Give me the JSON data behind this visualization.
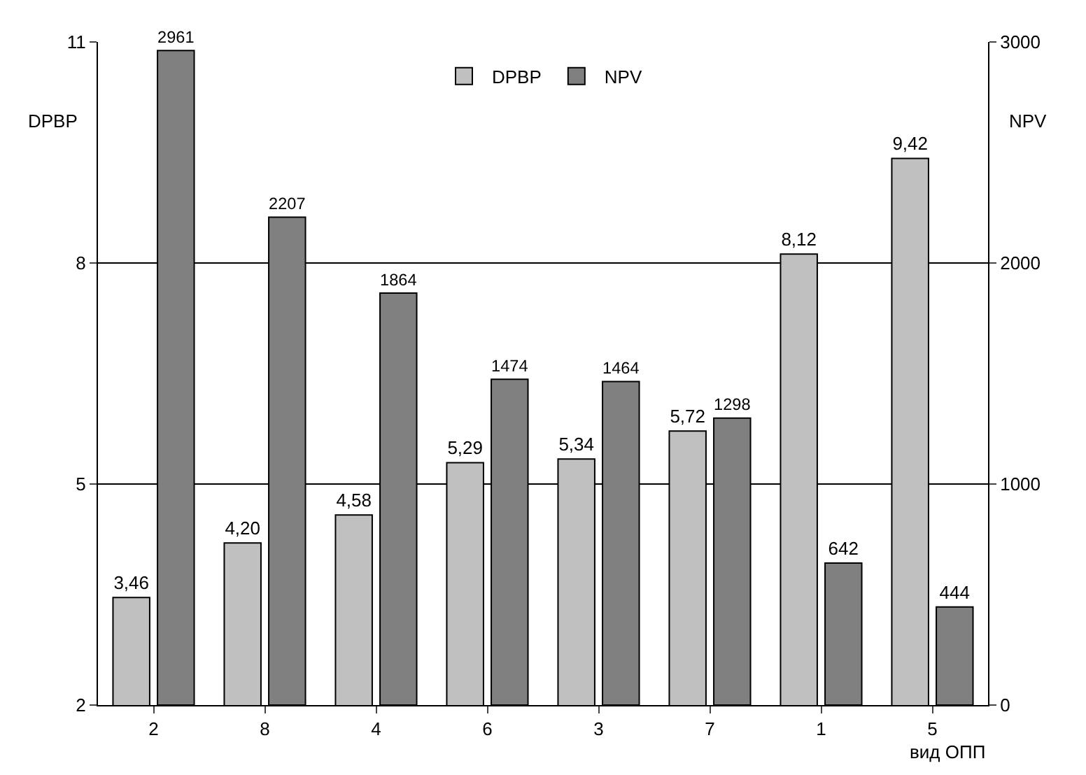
{
  "chart_data": {
    "type": "bar",
    "xlabel": "вид ОПП",
    "ylabel": "DPBP",
    "y2label": "NPV",
    "categories": [
      "2",
      "8",
      "4",
      "6",
      "3",
      "7",
      "1",
      "5"
    ],
    "series": [
      {
        "name": "DPBP",
        "color": "#c0c0c0",
        "values": [
          3.46,
          4.2,
          4.58,
          5.29,
          5.34,
          5.72,
          8.12,
          9.42
        ],
        "value_labels": [
          "3,46",
          "4,20",
          "4,58",
          "5,29",
          "5,34",
          "5,72",
          "8,12",
          "9,42"
        ]
      },
      {
        "name": "NPV",
        "color": "#808080",
        "axis": "y2",
        "values": [
          2961,
          2207,
          1864,
          1474,
          1464,
          1298,
          642,
          444
        ],
        "value_labels": [
          "2961",
          "2207",
          "1864",
          "1474",
          "1464",
          "1298",
          "642",
          "444"
        ]
      }
    ],
    "ylim": [
      2,
      11
    ],
    "yticks": [
      2,
      5,
      8,
      11
    ],
    "y2lim": [
      0,
      3000
    ],
    "y2ticks": [
      0,
      1000,
      2000,
      3000
    ],
    "grid": "y",
    "legend": "top"
  }
}
